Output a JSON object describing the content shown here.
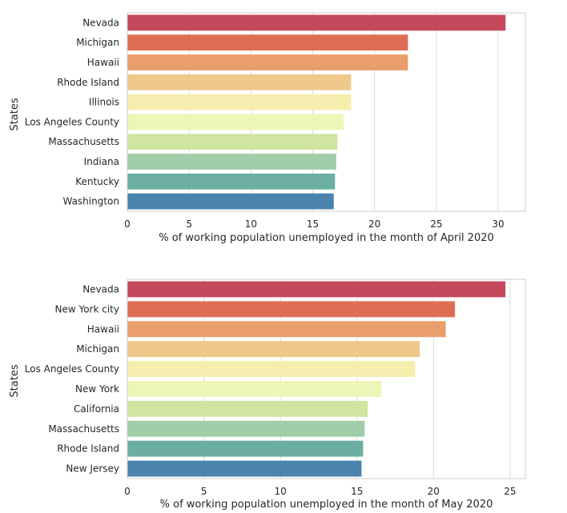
{
  "chart_data": [
    {
      "type": "bar",
      "orientation": "horizontal",
      "categories": [
        "Nevada",
        "Michigan",
        "Hawaii",
        "Rhode Island",
        "Illinois",
        "Los Angeles County",
        "Massachusetts",
        "Indiana",
        "Kentucky",
        "Washington"
      ],
      "values": [
        30.6,
        22.7,
        22.7,
        18.1,
        18.1,
        17.5,
        17.0,
        16.9,
        16.8,
        16.7
      ],
      "xlabel": "% of working population unemployed in the month of April 2020",
      "ylabel": "States",
      "xlim": [
        0,
        32.2
      ],
      "xticks": [
        0,
        5,
        10,
        15,
        20,
        25,
        30
      ],
      "grid": "vertical",
      "colors": [
        "#c5485d",
        "#dd6e54",
        "#e99e6b",
        "#efc88a",
        "#f5eeae",
        "#eef6b7",
        "#cfe5a0",
        "#9fcea8",
        "#6aafa2",
        "#4b83af"
      ]
    },
    {
      "type": "bar",
      "orientation": "horizontal",
      "categories": [
        "Nevada",
        "New York city",
        "Hawaii",
        "Michigan",
        "Los Angeles County",
        "New York",
        "California",
        "Massachusetts",
        "Rhode Island",
        "New Jersey"
      ],
      "values": [
        24.7,
        21.4,
        20.8,
        19.1,
        18.8,
        16.6,
        15.7,
        15.5,
        15.4,
        15.3
      ],
      "xlabel": "% of working population unemployed in the month of May 2020",
      "ylabel": "States",
      "xlim": [
        0,
        26
      ],
      "xticks": [
        0,
        5,
        10,
        15,
        20,
        25
      ],
      "grid": "vertical",
      "colors": [
        "#c5485d",
        "#dd6e54",
        "#e99e6b",
        "#efc88a",
        "#f5eeae",
        "#eef6b7",
        "#cfe5a0",
        "#9fcea8",
        "#6aafa2",
        "#4b83af"
      ]
    }
  ]
}
